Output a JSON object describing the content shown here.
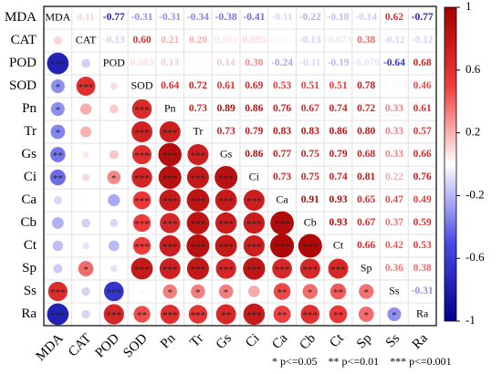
{
  "chart_data": {
    "type": "correlogram",
    "variables": [
      "MDA",
      "CAT",
      "POD",
      "SOD",
      "Pn",
      "Tr",
      "Gs",
      "Ci",
      "Ca",
      "Cb",
      "Ct",
      "Sp",
      "Ss",
      "Ra"
    ],
    "values": [
      [
        null,
        0.11,
        -0.77,
        -0.31,
        -0.31,
        -0.34,
        -0.38,
        -0.41,
        -0.11,
        -0.22,
        -0.18,
        -0.14,
        0.62,
        -0.77
      ],
      [
        null,
        null,
        -0.13,
        0.6,
        0.21,
        0.2,
        0.065,
        0.095,
        0.02,
        -0.13,
        -0.073,
        0.38,
        -0.12,
        -0.12
      ],
      [
        null,
        null,
        null,
        0.083,
        0.13,
        0.01,
        0.14,
        0.3,
        -0.24,
        -0.11,
        -0.19,
        -0.079,
        -0.64,
        0.68
      ],
      [
        null,
        null,
        null,
        null,
        0.64,
        0.72,
        0.61,
        0.69,
        0.53,
        0.51,
        0.51,
        0.78,
        -0.02,
        0.46
      ],
      [
        null,
        null,
        null,
        null,
        null,
        0.73,
        0.89,
        0.86,
        0.76,
        0.67,
        0.74,
        0.72,
        0.33,
        0.61
      ],
      [
        null,
        null,
        null,
        null,
        null,
        null,
        0.73,
        0.79,
        0.83,
        0.83,
        0.86,
        0.8,
        0.33,
        0.57
      ],
      [
        null,
        null,
        null,
        null,
        null,
        null,
        null,
        0.86,
        0.77,
        0.75,
        0.79,
        0.68,
        0.33,
        0.66
      ],
      [
        null,
        null,
        null,
        null,
        null,
        null,
        null,
        null,
        0.73,
        0.75,
        0.74,
        0.81,
        0.22,
        0.76
      ],
      [
        null,
        null,
        null,
        null,
        null,
        null,
        null,
        null,
        null,
        0.91,
        0.93,
        0.65,
        0.47,
        0.49
      ],
      [
        null,
        null,
        null,
        null,
        null,
        null,
        null,
        null,
        null,
        null,
        0.93,
        0.67,
        0.37,
        0.59
      ],
      [
        null,
        null,
        null,
        null,
        null,
        null,
        null,
        null,
        null,
        null,
        null,
        0.66,
        0.42,
        0.53
      ],
      [
        null,
        null,
        null,
        null,
        null,
        null,
        null,
        null,
        null,
        null,
        null,
        null,
        0.36,
        0.38
      ],
      [
        null,
        null,
        null,
        null,
        null,
        null,
        null,
        null,
        null,
        null,
        null,
        null,
        null,
        -0.31
      ],
      [
        null,
        null,
        null,
        null,
        null,
        null,
        null,
        null,
        null,
        null,
        null,
        null,
        null,
        null
      ]
    ],
    "value_labels": [
      [
        null,
        "0.11",
        "-0.77",
        "-0.31",
        "-0.31",
        "-0.34",
        "-0.38",
        "-0.41",
        "-0.11",
        "-0.22",
        "-0.18",
        "-0.14",
        "0.62",
        "-0.77"
      ],
      [
        null,
        null,
        "-0.13",
        "0.60",
        "0.21",
        "0.20",
        "0.065",
        "0.095",
        "0.020",
        "-0.13",
        "-0.073",
        "0.38",
        "-0.12",
        "-0.12"
      ],
      [
        null,
        null,
        null,
        "0.083",
        "0.13",
        "0.010",
        "0.14",
        "0.30",
        "-0.24",
        "-0.11",
        "-0.19",
        "-0.079",
        "-0.64",
        "0.68"
      ],
      [
        null,
        null,
        null,
        null,
        "0.64",
        "0.72",
        "0.61",
        "0.69",
        "0.53",
        "0.51",
        "0.51",
        "0.78",
        "-0.020",
        "0.46"
      ],
      [
        null,
        null,
        null,
        null,
        null,
        "0.73",
        "0.89",
        "0.86",
        "0.76",
        "0.67",
        "0.74",
        "0.72",
        "0.33",
        "0.61"
      ],
      [
        null,
        null,
        null,
        null,
        null,
        null,
        "0.73",
        "0.79",
        "0.83",
        "0.83",
        "0.86",
        "0.80",
        "0.33",
        "0.57"
      ],
      [
        null,
        null,
        null,
        null,
        null,
        null,
        null,
        "0.86",
        "0.77",
        "0.75",
        "0.79",
        "0.68",
        "0.33",
        "0.66"
      ],
      [
        null,
        null,
        null,
        null,
        null,
        null,
        null,
        null,
        "0.73",
        "0.75",
        "0.74",
        "0.81",
        "0.22",
        "0.76"
      ],
      [
        null,
        null,
        null,
        null,
        null,
        null,
        null,
        null,
        null,
        "0.91",
        "0.93",
        "0.65",
        "0.47",
        "0.49"
      ],
      [
        null,
        null,
        null,
        null,
        null,
        null,
        null,
        null,
        null,
        null,
        "0.93",
        "0.67",
        "0.37",
        "0.59"
      ],
      [
        null,
        null,
        null,
        null,
        null,
        null,
        null,
        null,
        null,
        null,
        null,
        "0.66",
        "0.42",
        "0.53"
      ],
      [
        null,
        null,
        null,
        null,
        null,
        null,
        null,
        null,
        null,
        null,
        null,
        null,
        "0.36",
        "0.38"
      ],
      [
        null,
        null,
        null,
        null,
        null,
        null,
        null,
        null,
        null,
        null,
        null,
        null,
        null,
        "-0.31"
      ],
      [
        null,
        null,
        null,
        null,
        null,
        null,
        null,
        null,
        null,
        null,
        null,
        null,
        null,
        null
      ]
    ],
    "stars": [
      [
        null,
        null,
        null,
        null,
        null,
        null,
        null,
        null,
        null,
        null,
        null,
        null,
        null,
        null
      ],
      [
        null,
        null,
        null,
        null,
        null,
        null,
        null,
        null,
        null,
        null,
        null,
        null,
        null,
        null
      ],
      [
        "***",
        null,
        null,
        null,
        null,
        null,
        null,
        null,
        null,
        null,
        null,
        null,
        null,
        null
      ],
      [
        "*",
        "***",
        null,
        null,
        null,
        null,
        null,
        null,
        null,
        null,
        null,
        null,
        null,
        null
      ],
      [
        "*",
        null,
        null,
        "***",
        null,
        null,
        null,
        null,
        null,
        null,
        null,
        null,
        null,
        null
      ],
      [
        "*",
        null,
        null,
        "***",
        "***",
        null,
        null,
        null,
        null,
        null,
        null,
        null,
        null,
        null
      ],
      [
        "**",
        null,
        null,
        "***",
        "***",
        "***",
        null,
        null,
        null,
        null,
        null,
        null,
        null,
        null
      ],
      [
        "**",
        null,
        "*",
        "***",
        "***",
        "***",
        "***",
        null,
        null,
        null,
        null,
        null,
        null,
        null
      ],
      [
        null,
        null,
        null,
        "***",
        "***",
        "***",
        "***",
        "***",
        null,
        null,
        null,
        null,
        null,
        null
      ],
      [
        null,
        null,
        null,
        "***",
        "***",
        "***",
        "***",
        "***",
        "***",
        null,
        null,
        null,
        null,
        null
      ],
      [
        null,
        null,
        null,
        "***",
        "***",
        "***",
        "***",
        "***",
        "***",
        "***",
        null,
        null,
        null,
        null
      ],
      [
        null,
        "*",
        null,
        "***",
        "***",
        "***",
        "***",
        "***",
        "***",
        "***",
        "***",
        null,
        null,
        null
      ],
      [
        "***",
        null,
        "***",
        null,
        "*",
        "*",
        "*",
        null,
        "**",
        "*",
        "**",
        "*",
        null,
        null
      ],
      [
        "***",
        null,
        "***",
        "**",
        "***",
        "***",
        "**",
        "***",
        "**",
        "***",
        "**",
        "*",
        "*",
        null
      ]
    ],
    "clim": [
      -1,
      1
    ],
    "colormap": [
      "#00008b",
      "#4a4ae6",
      "#ffffff",
      "#ee3b3b",
      "#a50000"
    ],
    "colorbar_ticks": [
      1,
      0.6,
      0.2,
      -0.2,
      -0.6,
      -1
    ],
    "significance_notes": [
      "* p<=0.05",
      "** p<=0.01",
      "*** p<=0.001"
    ]
  }
}
